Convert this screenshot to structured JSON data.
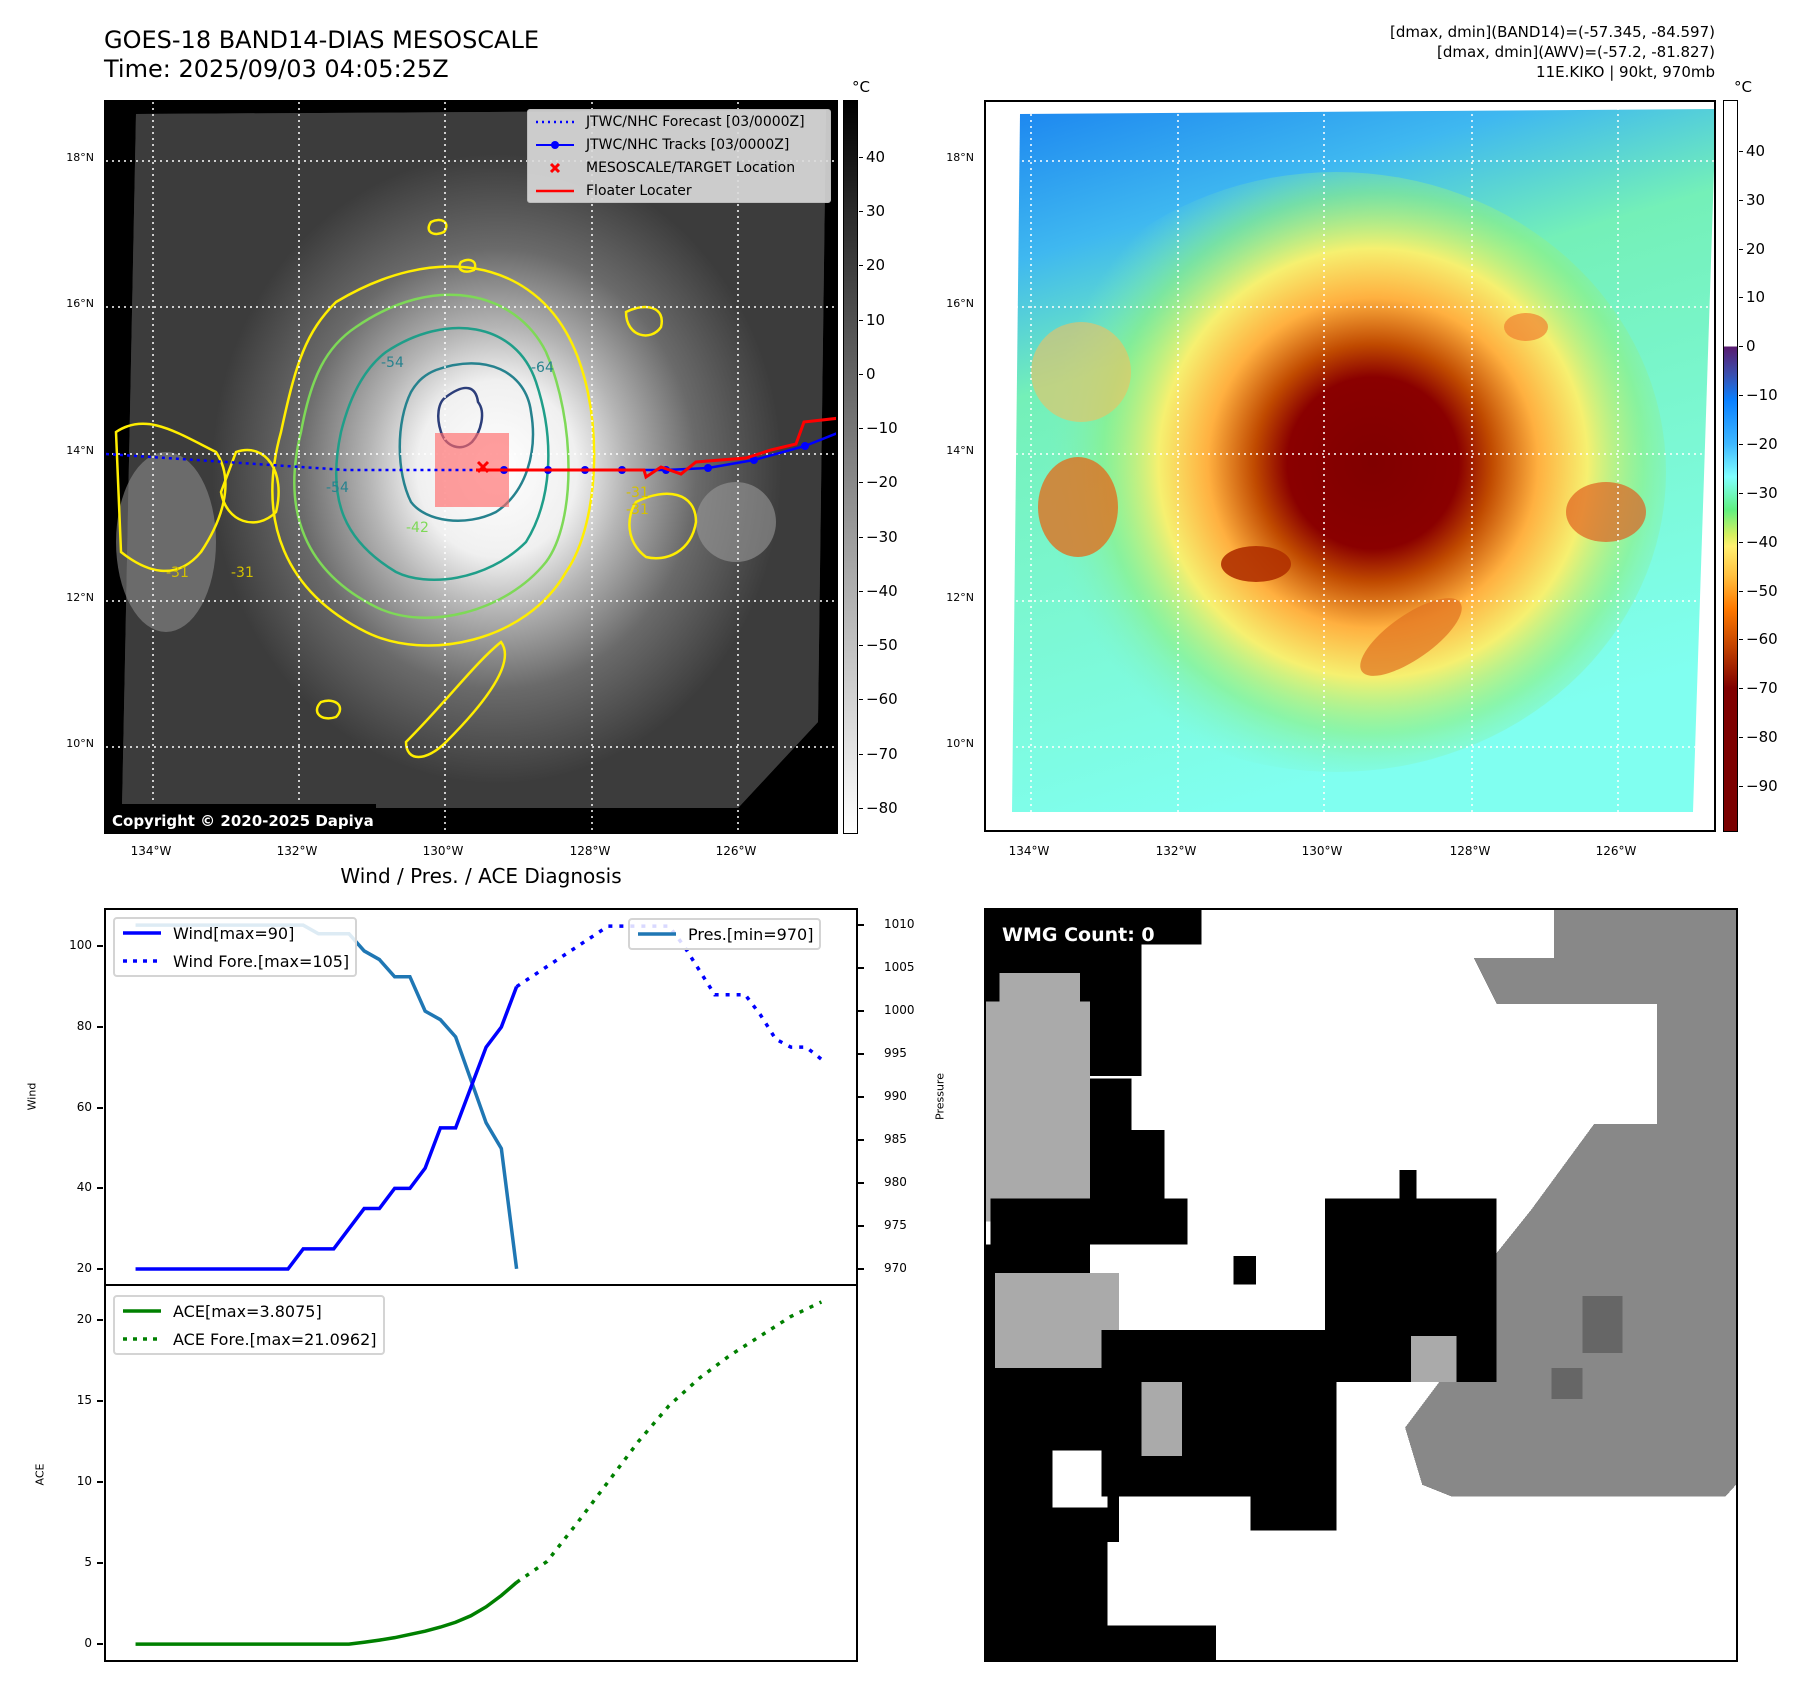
{
  "header": {
    "title_line1": "GOES-18 BAND14-DIAS MESOSCALE",
    "title_line2": "Time: 2025/09/03 04:05:25Z",
    "info_line1": "[dmax, dmin](BAND14)=(-57.345, -84.597)",
    "info_line2": "[dmax, dmin](AWV)=(-57.2, -81.827)",
    "info_line3": "11E.KIKO | 90kt, 970mb"
  },
  "maps": {
    "unit": "°C",
    "lat_labels": [
      "18°N",
      "16°N",
      "14°N",
      "12°N",
      "10°N"
    ],
    "lon_labels": [
      "134°W",
      "132°W",
      "130°W",
      "128°W",
      "126°W"
    ],
    "copyright": "Copyright © 2020-2025 Dapiya",
    "legend": [
      {
        "label": "JTWC/NHC Forecast [03/0000Z]",
        "color": "#0000ff",
        "style": "dotted"
      },
      {
        "label": "JTWC/NHC Tracks [03/0000Z]",
        "color": "#0000ff",
        "style": "line-dot"
      },
      {
        "label": "MESOSCALE/TARGET Location",
        "color": "#ff0000",
        "style": "x"
      },
      {
        "label": "Floater Locater",
        "color": "#ff0000",
        "style": "line"
      }
    ],
    "contour_labels": [
      "-31",
      "-31",
      "-31",
      "-31",
      "-42",
      "-54",
      "-54",
      "-64"
    ],
    "left_colorbar": {
      "ticks": [
        40,
        30,
        20,
        10,
        0,
        -10,
        -20,
        -30,
        -40,
        -50,
        -60,
        -70,
        -80
      ],
      "range": [
        50.5,
        -84.8
      ]
    },
    "right_colorbar": {
      "ticks": [
        40,
        30,
        20,
        10,
        0,
        -10,
        -20,
        -30,
        -40,
        -50,
        -60,
        -70,
        -80,
        -90
      ],
      "range": [
        50.4,
        -99.4
      ]
    }
  },
  "wmg": {
    "label": "WMG Count: 0"
  },
  "chart_data": [
    {
      "type": "line",
      "title": "Wind / Pres. / ACE Diagnosis",
      "xlim": [
        -2.07,
        47.4
      ],
      "ylabel": "Wind",
      "ylabel_right": "Pressure",
      "ylim": [
        15.8,
        109.5
      ],
      "ylim_right": [
        968,
        1012
      ],
      "yticks": [
        20,
        40,
        60,
        80,
        100
      ],
      "yticks_right": [
        970,
        975,
        980,
        985,
        990,
        995,
        1000,
        1005,
        1010
      ],
      "legend_left": [
        "Wind[max=90]",
        "Wind Fore.[max=105]"
      ],
      "legend_right": [
        "Pres.[min=970]"
      ],
      "series": [
        {
          "name": "Wind[max=90]",
          "color": "#0000ff",
          "style": "solid",
          "axis": "left",
          "x": [
            0,
            1,
            2,
            3,
            4,
            5,
            6,
            7,
            8,
            9,
            10,
            11,
            12,
            13,
            14,
            15,
            16,
            17,
            18,
            19,
            20,
            21,
            22,
            23,
            24,
            25
          ],
          "values": [
            20,
            20,
            20,
            20,
            20,
            20,
            20,
            20,
            20,
            20,
            20,
            25,
            25,
            25,
            30,
            35,
            35,
            40,
            40,
            45,
            55,
            55,
            65,
            75,
            80,
            90
          ]
        },
        {
          "name": "Wind Fore.[max=105]",
          "color": "#0000ff",
          "style": "dotted",
          "axis": "left",
          "x": [
            25,
            27,
            29,
            31,
            33,
            35,
            36,
            38,
            39,
            40,
            41,
            42,
            43,
            44,
            45
          ],
          "values": [
            90,
            95,
            100,
            105,
            105,
            105,
            100,
            88,
            88,
            88,
            83,
            77,
            75,
            75,
            72
          ]
        },
        {
          "name": "Pres.[min=970]",
          "color": "#1f77b4",
          "style": "solid",
          "axis": "right",
          "x": [
            0,
            1,
            2,
            3,
            4,
            5,
            6,
            7,
            8,
            9,
            10,
            11,
            12,
            13,
            14,
            15,
            16,
            17,
            18,
            19,
            20,
            21,
            22,
            23,
            24,
            25
          ],
          "values": [
            1010,
            1010,
            1010,
            1010,
            1010,
            1010,
            1010,
            1010,
            1010,
            1010,
            1010,
            1010,
            1009,
            1009,
            1009,
            1007,
            1006,
            1004,
            1004,
            1000,
            999,
            997,
            992,
            987,
            984,
            970
          ]
        }
      ]
    },
    {
      "type": "line",
      "xlim": [
        -2.07,
        47.4
      ],
      "ylabel": "ACE",
      "ylim": [
        -1.1,
        22.2
      ],
      "yticks": [
        0,
        5,
        10,
        15,
        20
      ],
      "legend": [
        "ACE[max=3.8075]",
        "ACE Fore.[max=21.0962]"
      ],
      "series": [
        {
          "name": "ACE[max=3.8075]",
          "color": "#008000",
          "style": "solid",
          "x": [
            0,
            1,
            2,
            3,
            4,
            5,
            6,
            7,
            8,
            9,
            10,
            11,
            12,
            13,
            14,
            15,
            16,
            17,
            18,
            19,
            20,
            21,
            22,
            23,
            24,
            25
          ],
          "values": [
            0,
            0,
            0,
            0,
            0,
            0,
            0,
            0,
            0,
            0,
            0,
            0,
            0,
            0,
            0,
            0.12,
            0.25,
            0.4,
            0.6,
            0.8,
            1.05,
            1.35,
            1.75,
            2.3,
            3.0,
            3.8075
          ]
        },
        {
          "name": "ACE Fore.[max=21.0962]",
          "color": "#008000",
          "style": "dotted",
          "x": [
            25,
            27,
            29,
            31,
            33,
            35,
            37,
            39,
            41,
            43,
            45
          ],
          "values": [
            3.8075,
            5.1,
            7.5,
            10,
            12.5,
            14.7,
            16.4,
            17.8,
            19.0,
            20.2,
            21.0962
          ]
        }
      ]
    }
  ]
}
